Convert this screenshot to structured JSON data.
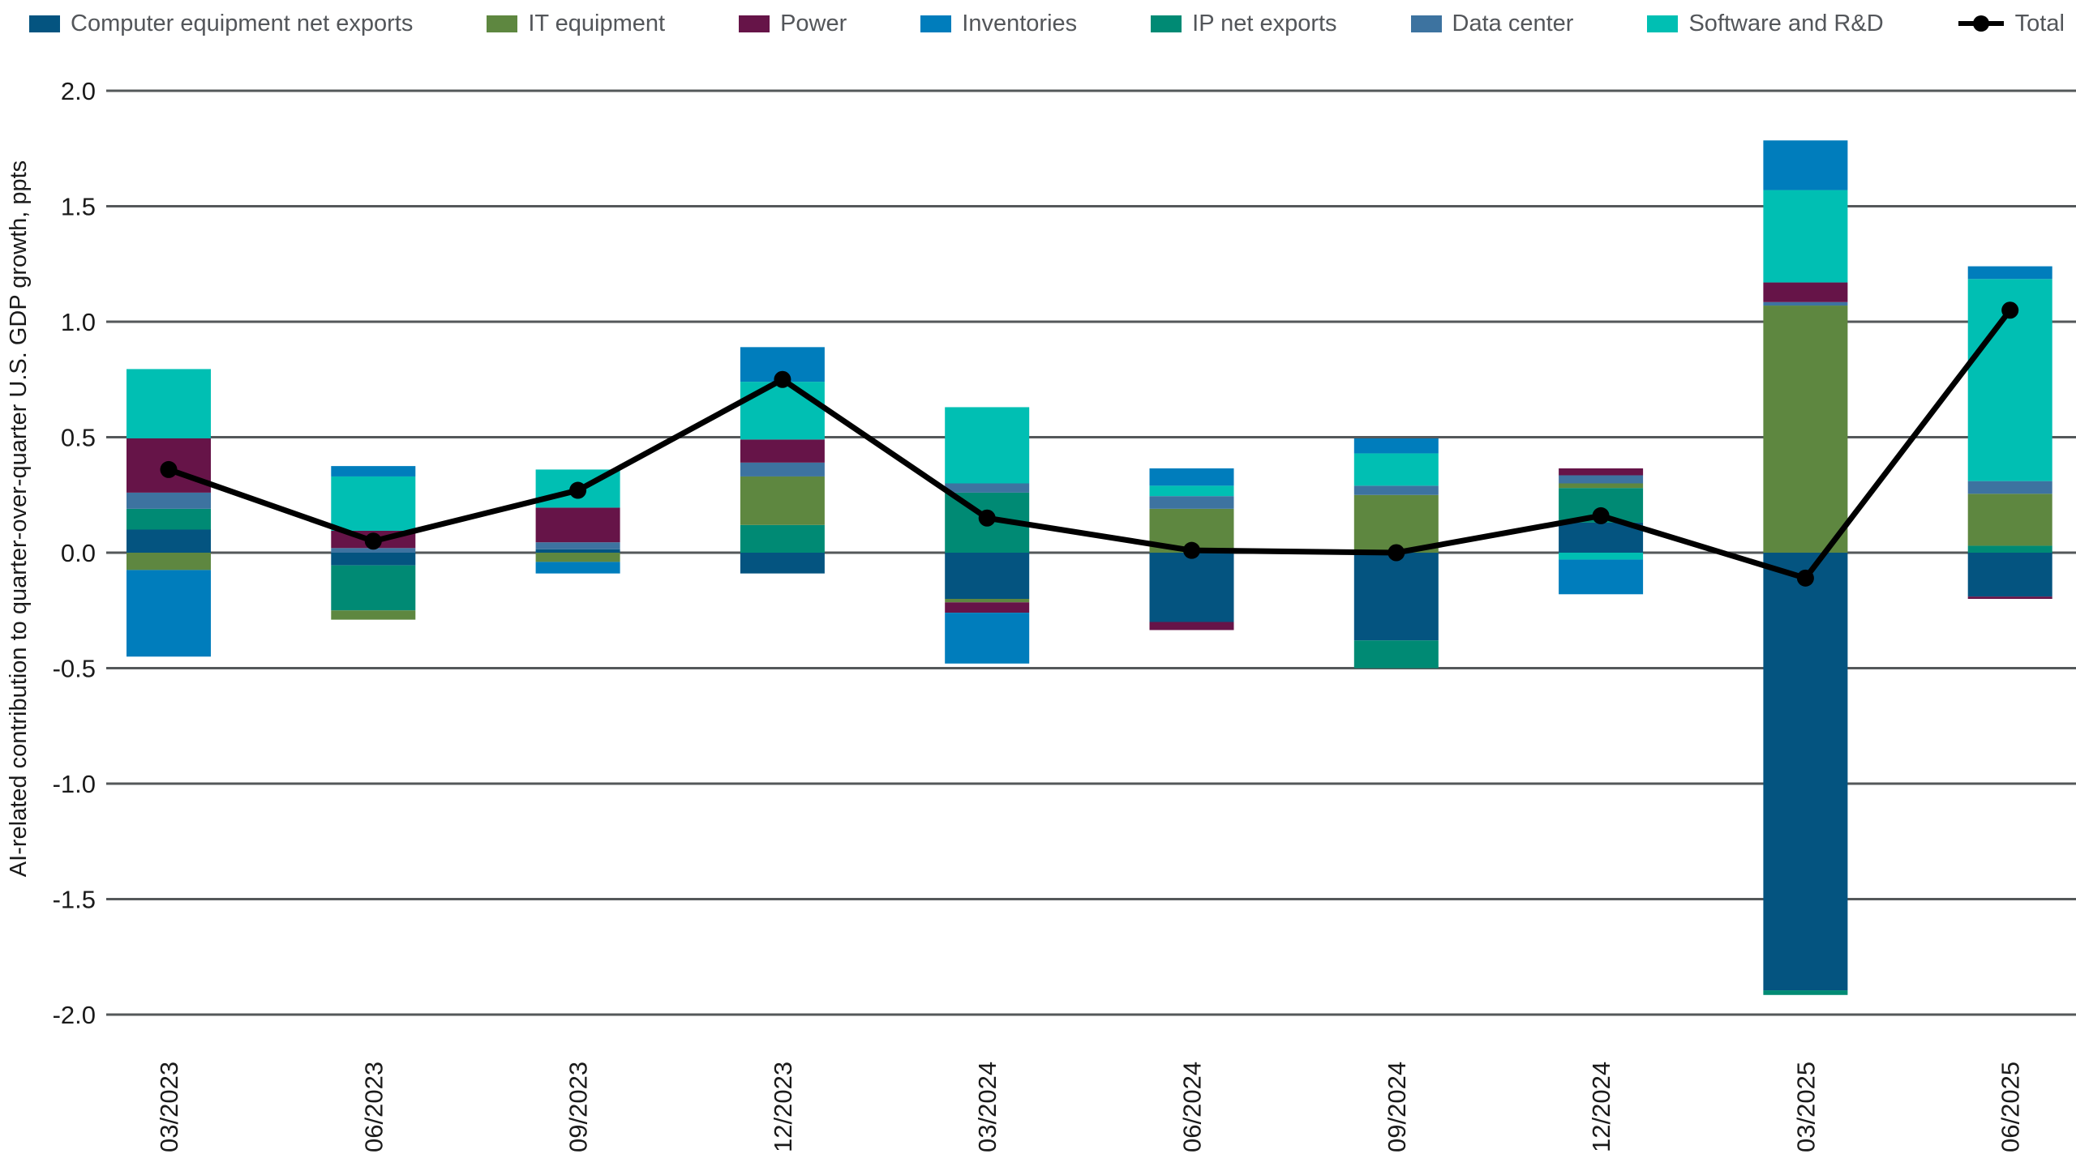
{
  "legend": {
    "items": [
      {
        "label": "Computer equipment net exports",
        "color": "#045480",
        "marker": "swatch"
      },
      {
        "label": "IT equipment",
        "color": "#5e8740",
        "marker": "swatch"
      },
      {
        "label": "Power",
        "color": "#661448",
        "marker": "swatch"
      },
      {
        "label": "Inventories",
        "color": "#007dbc",
        "marker": "swatch"
      },
      {
        "label": "IP net exports",
        "color": "#008a74",
        "marker": "swatch"
      },
      {
        "label": "Data center",
        "color": "#3d73a0",
        "marker": "swatch"
      },
      {
        "label": "Software and R&D",
        "color": "#00bfb3",
        "marker": "swatch"
      },
      {
        "label": "Total",
        "color": "#000000",
        "marker": "line-dot"
      }
    ]
  },
  "chart_data": {
    "type": "bar",
    "subtype": "stacked-bars-with-total-line",
    "title": "",
    "ylabel": "AI-related contribution to quarter-over-quarter U.S. GDP growth, ppts",
    "xlabel": "",
    "ylim": [
      -2.0,
      2.0
    ],
    "yticks": [
      "2.0",
      "1.5",
      "1.0",
      "0.5",
      "0.0",
      "-0.5",
      "-1.0",
      "-1.5",
      "-2.0"
    ],
    "grid": true,
    "legend_position": "top",
    "gridline_color": "#54585a",
    "axis_text_color": "#1a1a1a",
    "legend_text_color": "#53565a",
    "categories": [
      "03/2023",
      "06/2023",
      "09/2023",
      "12/2023",
      "03/2024",
      "06/2024",
      "09/2024",
      "12/2024",
      "03/2025",
      "06/2025"
    ],
    "series": [
      {
        "name": "Computer equipment net exports",
        "color": "#045480",
        "values": [
          0.1,
          -0.055,
          0.015,
          -0.09,
          -0.2,
          -0.3,
          -0.38,
          0.13,
          -1.895,
          -0.19
        ]
      },
      {
        "name": "IT equipment",
        "color": "#5e8740",
        "values": [
          -0.075,
          -0.04,
          -0.04,
          0.21,
          -0.015,
          0.19,
          0.25,
          0.02,
          1.07,
          0.225
        ]
      },
      {
        "name": "Power",
        "color": "#661448",
        "values": [
          0.235,
          0.075,
          0.15,
          0.1,
          -0.045,
          -0.035,
          0,
          0.03,
          0.085,
          -0.01
        ]
      },
      {
        "name": "Inventories",
        "color": "#007dbc",
        "values": [
          -0.375,
          0.045,
          -0.05,
          0.15,
          -0.22,
          0.075,
          0.065,
          -0.15,
          0.215,
          0.055
        ]
      },
      {
        "name": "IP net exports",
        "color": "#008a74",
        "values": [
          0.09,
          -0.195,
          0,
          0.12,
          0.26,
          0,
          -0.12,
          0.15,
          -0.02,
          0.03
        ]
      },
      {
        "name": "Data center",
        "color": "#3d73a0",
        "values": [
          0.07,
          0.02,
          0.03,
          0.06,
          0.04,
          0.055,
          0.04,
          0.035,
          0.015,
          0.055
        ]
      },
      {
        "name": "Software and R&D",
        "color": "#00bfb3",
        "values": [
          0.3,
          0.235,
          0.165,
          0.25,
          0.33,
          0.045,
          0.14,
          -0.03,
          0.4,
          0.875
        ]
      }
    ],
    "stack_order": [
      "Computer equipment net exports",
      "IP net exports",
      "IT equipment",
      "Data center",
      "Power",
      "Software and R&D",
      "Inventories"
    ],
    "line_series": {
      "name": "Total",
      "color": "#000000",
      "values": [
        0.36,
        0.05,
        0.27,
        0.75,
        0.15,
        0.01,
        0.0,
        0.16,
        -0.11,
        1.05
      ]
    }
  }
}
